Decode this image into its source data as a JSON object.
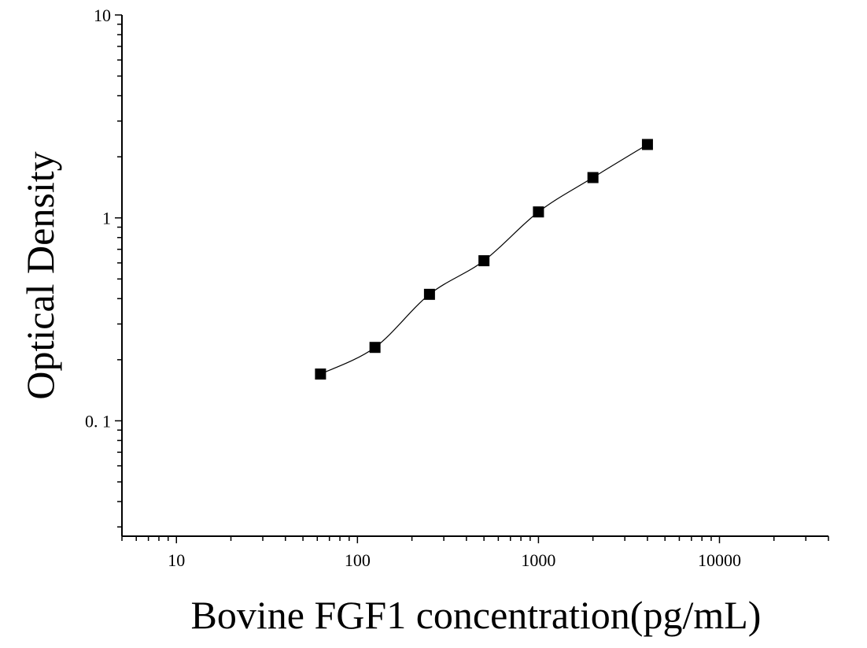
{
  "chart_data": {
    "type": "scatter",
    "xlabel": "Bovine FGF1 concentration(pg/mL)",
    "ylabel": "Optical Density",
    "xscale": "log",
    "yscale": "log",
    "xlim": [
      5,
      40000
    ],
    "ylim": [
      0.027,
      10
    ],
    "x_ticks": [
      {
        "value": 10,
        "label": "10"
      },
      {
        "value": 100,
        "label": "100"
      },
      {
        "value": 1000,
        "label": "1000"
      },
      {
        "value": 10000,
        "label": "10000"
      }
    ],
    "y_ticks": [
      {
        "value": 0.1,
        "label": "0. 1"
      },
      {
        "value": 1,
        "label": "1"
      },
      {
        "value": 10,
        "label": "10"
      }
    ],
    "grid": false,
    "legend": "none",
    "series": [
      {
        "x": [
          62.5,
          125,
          250,
          500,
          1000,
          2000,
          4000
        ],
        "y": [
          0.17,
          0.23,
          0.42,
          0.615,
          1.07,
          1.58,
          2.3
        ],
        "marker": "square",
        "fit_line": true,
        "color": "#000000"
      }
    ]
  }
}
